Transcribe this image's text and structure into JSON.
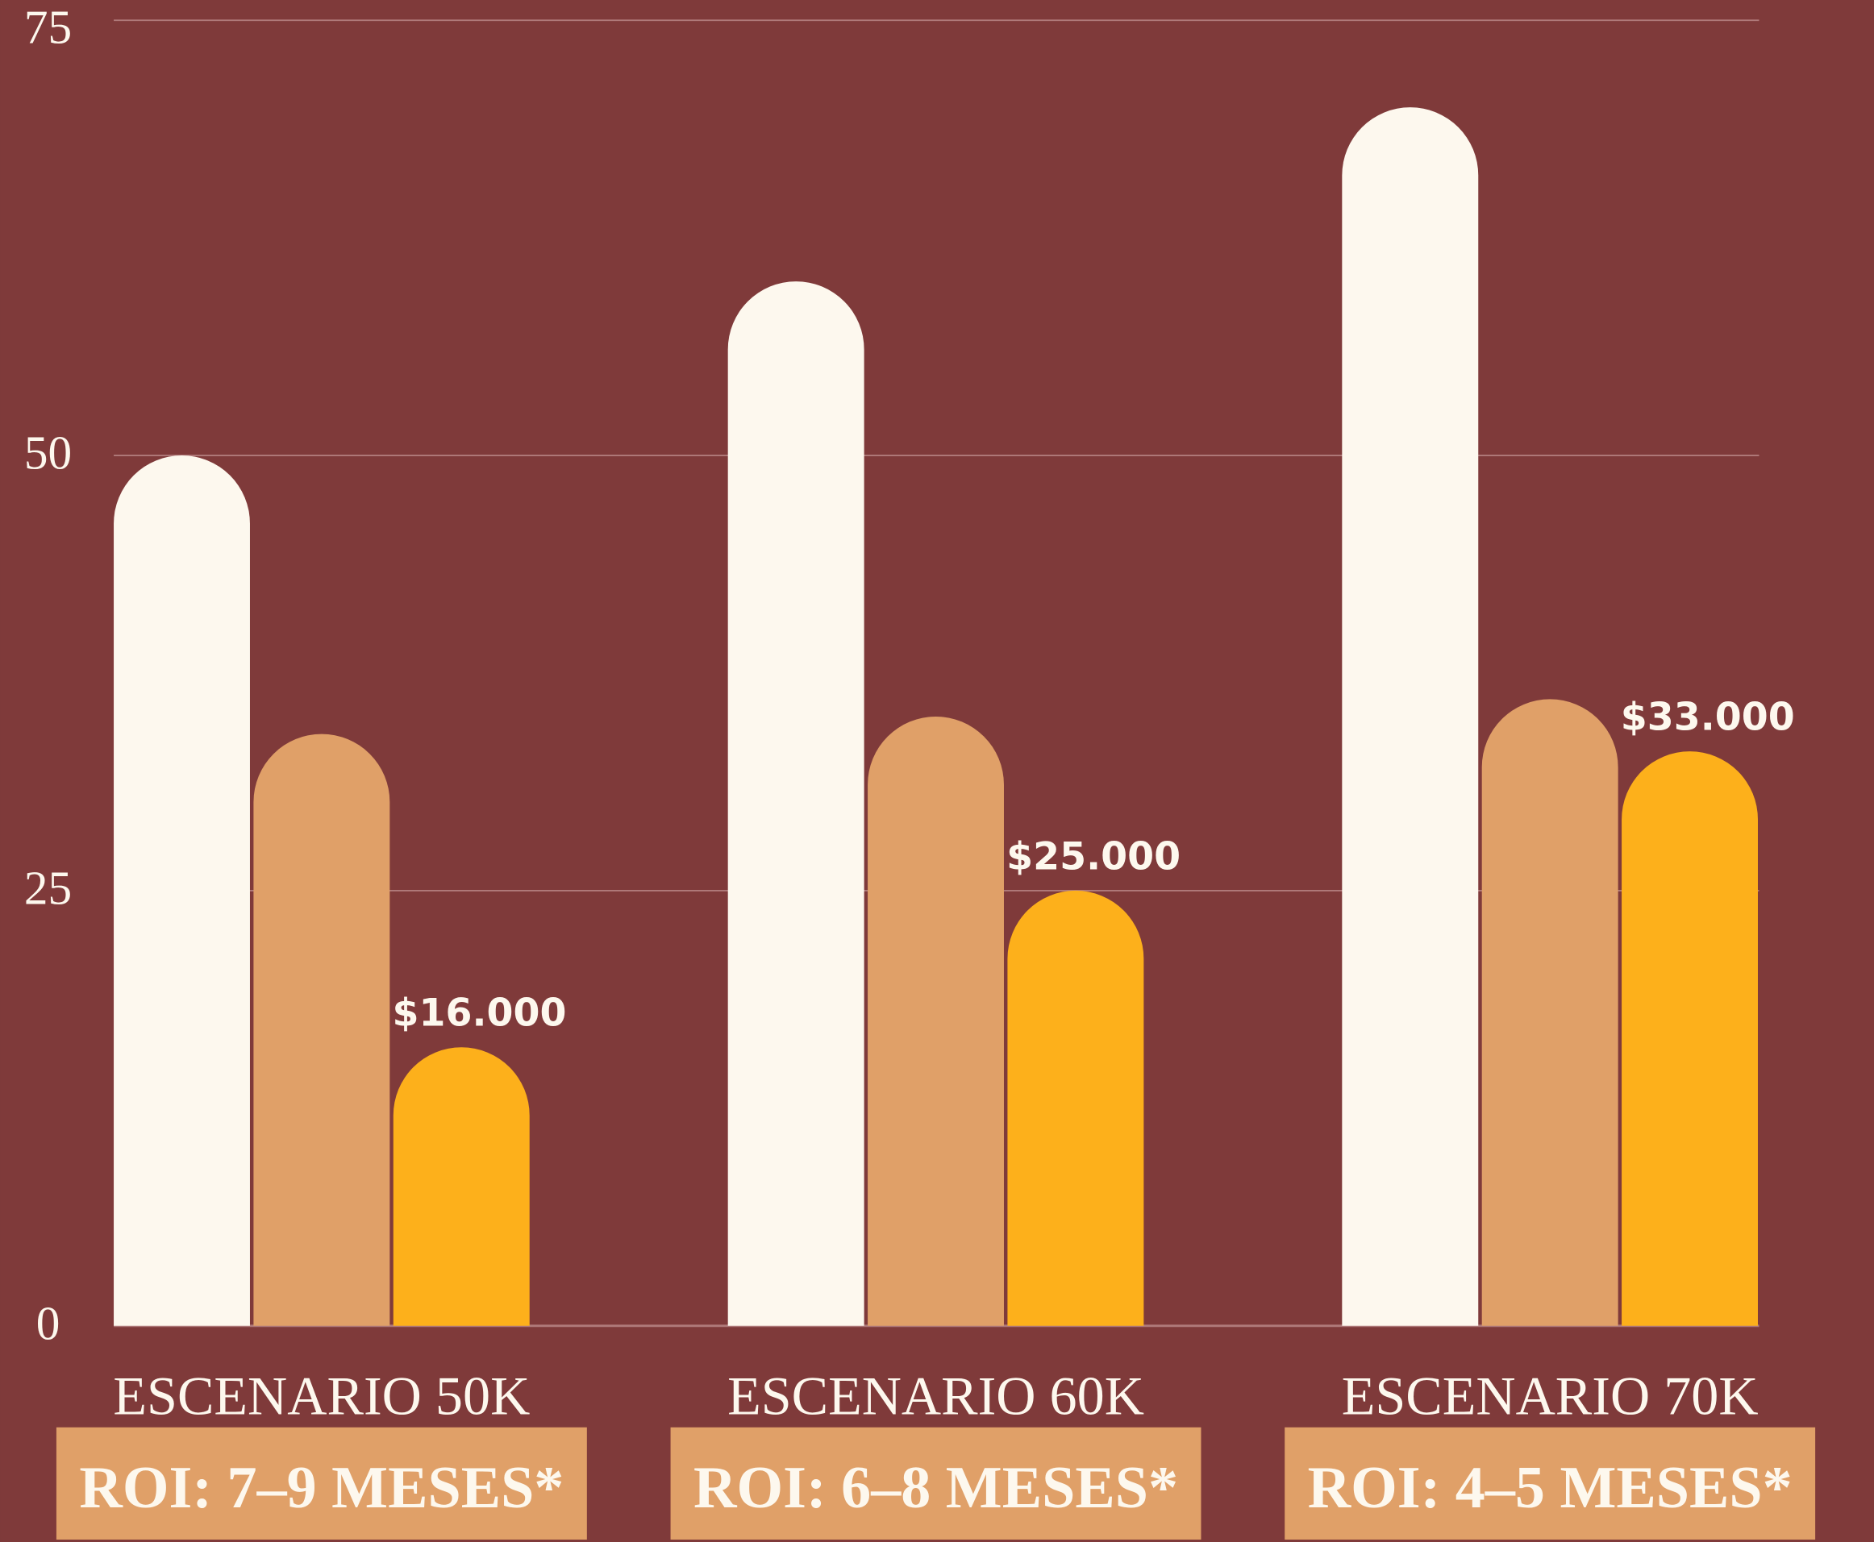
{
  "chart_data": {
    "type": "bar",
    "categories": [
      "ESCENARIO 50K",
      "ESCENARIO 60K",
      "ESCENARIO 70K"
    ],
    "annotations": [
      "ROI: 7–9 MESES*",
      "ROI: 6–8 MESES*",
      "ROI: 4–5 MESES*"
    ],
    "series": [
      {
        "color": "#fdf8ee",
        "values": [
          50,
          60,
          70
        ]
      },
      {
        "color": "#e0a068",
        "values": [
          34,
          35,
          36
        ]
      },
      {
        "color": "#fdb01b",
        "values": [
          16,
          25,
          33
        ],
        "value_labels": [
          "$16.000",
          "$25.000",
          "$33.000"
        ]
      }
    ],
    "ylim": [
      0,
      75
    ],
    "yticks": [
      0,
      25,
      50,
      75
    ],
    "grid": true,
    "background": "#7f3a3a",
    "annotation_box_color": "#e0a068"
  }
}
